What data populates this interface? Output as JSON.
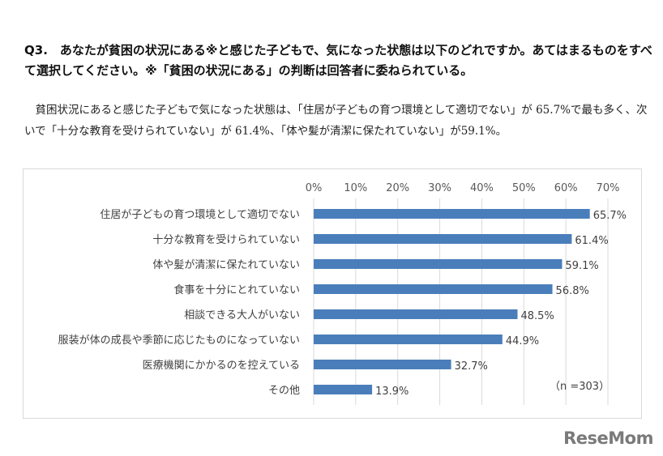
{
  "question": "Q3.　あなたが貧困の状況にある※と感じた子どもで、気になった状態は以下のどれですか。あてはまるものをすべて選択してください。※「貧困の状況にある」の判断は回答者に委ねられている。",
  "summary": "　貧困状況にあると感じた子どもで気になった状態は、「住居が子どもの育つ環境として適切でない」が 65.7%で最も多く、次いで「十分な教育を受けられていない」が 61.4%、「体や髪が清潔に保たれていない」が59.1%。",
  "logo": "ReseMom",
  "chart_data": {
    "type": "bar",
    "orientation": "horizontal",
    "categories": [
      "住居が子どもの育つ環境として適切でない",
      "十分な教育を受けられていない",
      "体や髪が清潔に保たれていない",
      "食事を十分にとれていない",
      "相談できる大人がいない",
      "服装が体の成長や季節に応じたものになっていない",
      "医療機関にかかるのを控えている",
      "その他"
    ],
    "values": [
      65.7,
      61.4,
      59.1,
      56.8,
      48.5,
      44.9,
      32.7,
      13.9
    ],
    "value_labels": [
      "65.7%",
      "61.4%",
      "59.1%",
      "56.8%",
      "48.5%",
      "44.9%",
      "32.7%",
      "13.9%"
    ],
    "xlim": [
      0,
      70
    ],
    "ticks": [
      "0%",
      "10%",
      "20%",
      "30%",
      "40%",
      "50%",
      "60%",
      "70%"
    ],
    "axis_position": "top",
    "grid": true,
    "annotation": "（n =303）",
    "bar_color": "#4a7ebb",
    "grid_color": "#d9d9d9"
  }
}
